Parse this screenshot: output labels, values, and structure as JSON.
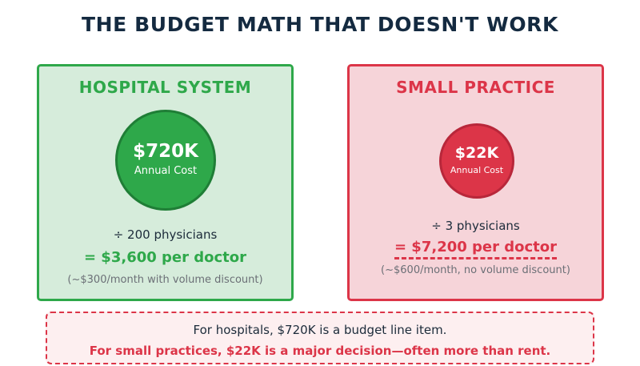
{
  "title": "THE BUDGET MATH THAT DOESN'T WORK",
  "colors": {
    "hospital_accent": "#2ea84a",
    "hospital_bg": "#d6ecdb",
    "small_accent": "#dc3548",
    "small_bg": "#f6d4d9",
    "title_color": "#142a40"
  },
  "hospital": {
    "heading": "HOSPITAL SYSTEM",
    "amount": "$720K",
    "amount_caption": "Annual Cost",
    "divisor": "÷ 200 physicians",
    "per_doctor": "= $3,600 per doctor",
    "note": "(~$300/month with volume discount)"
  },
  "small": {
    "heading": "SMALL PRACTICE",
    "amount": "$22K",
    "amount_caption": "Annual Cost",
    "divisor": "÷ 3 physicians",
    "per_doctor": "= $7,200 per doctor",
    "note": "(~$600/month, no volume discount)"
  },
  "callout": {
    "line1": "For hospitals, $720K is a budget line item.",
    "line2": "For small practices, $22K is a major decision—often more than rent."
  }
}
